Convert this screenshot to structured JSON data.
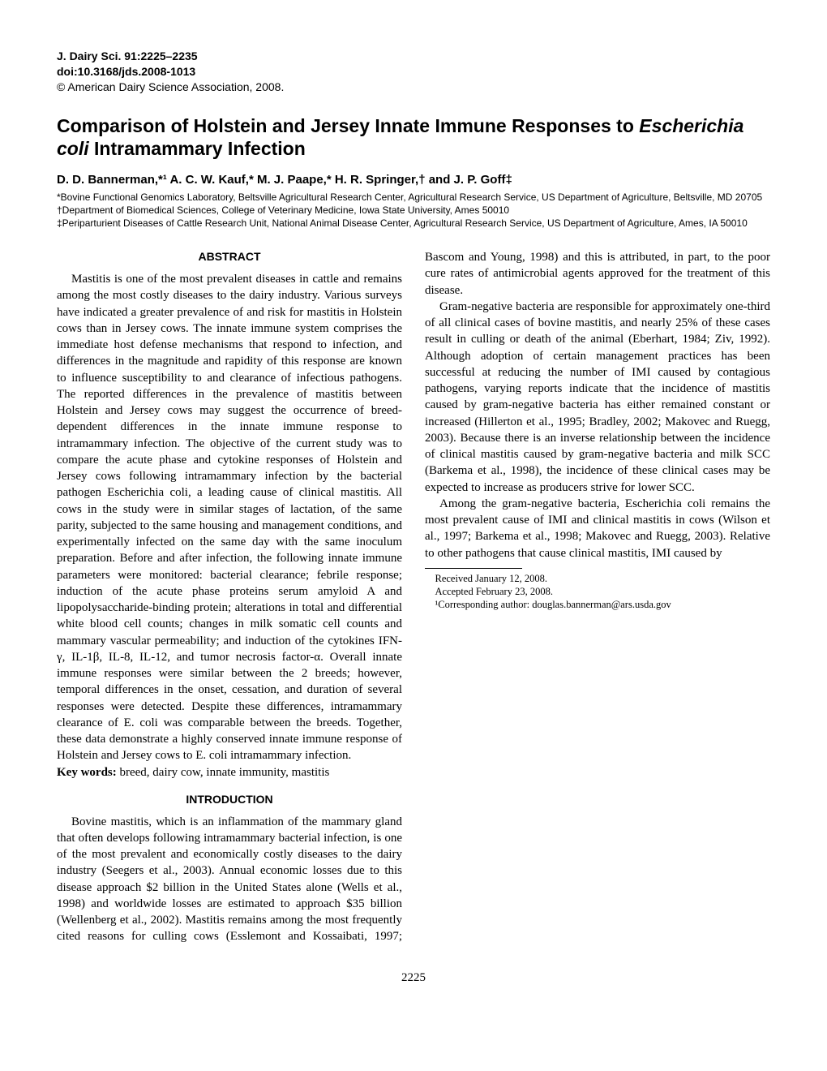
{
  "meta": {
    "journal_line": "J. Dairy Sci. 91:2225–2235",
    "doi_line": "doi:10.3168/jds.2008-1013",
    "copyright_line": "© American Dairy Science Association, 2008."
  },
  "title_pre": "Comparison of Holstein and Jersey Innate Immune Responses to ",
  "title_ital": "Escherichia coli",
  "title_post": " Intramammary Infection",
  "authors": "D. D. Bannerman,*¹ A. C. W. Kauf,* M. J. Paape,* H. R. Springer,† and J. P. Goff‡",
  "affiliations": {
    "a1": "*Bovine Functional Genomics Laboratory, Beltsville Agricultural Research Center, Agricultural Research Service, US Department of Agriculture, Beltsville, MD 20705",
    "a2": "†Department of Biomedical Sciences, College of Veterinary Medicine, Iowa State University, Ames 50010",
    "a3": "‡Periparturient Diseases of Cattle Research Unit, National Animal Disease Center, Agricultural Research Service, US Department of Agriculture, Ames, IA 50010"
  },
  "abstract_head": "ABSTRACT",
  "abstract_body": "Mastitis is one of the most prevalent diseases in cattle and remains among the most costly diseases to the dairy industry. Various surveys have indicated a greater prevalence of and risk for mastitis in Holstein cows than in Jersey cows. The innate immune system comprises the immediate host defense mechanisms that respond to infection, and differences in the magnitude and rapidity of this response are known to influence susceptibility to and clearance of infectious pathogens. The reported differences in the prevalence of mastitis between Holstein and Jersey cows may suggest the occurrence of breed-dependent differences in the innate immune response to intramammary infection. The objective of the current study was to compare the acute phase and cytokine responses of Holstein and Jersey cows following intramammary infection by the bacterial pathogen Escherichia coli, a leading cause of clinical mastitis. All cows in the study were in similar stages of lactation, of the same parity, subjected to the same housing and management conditions, and experimentally infected on the same day with the same inoculum preparation. Before and after infection, the following innate immune parameters were monitored: bacterial clearance; febrile response; induction of the acute phase proteins serum amyloid A and lipopolysaccharide-binding protein; alterations in total and differential white blood cell counts; changes in milk somatic cell counts and mammary vascular permeability; and induction of the cytokines IFN-γ, IL-1β, IL-8, IL-12, and tumor necrosis factor-α. Overall innate immune responses were similar between the 2 breeds; however, temporal differences in the onset, cessation, and duration of several responses were detected. Despite these differences, intramammary clearance of E. coli was comparable between the breeds. Together, these data demonstrate a highly conserved innate immune response of Holstein and Jersey cows to E. coli intramammary infection.",
  "keywords_label": "Key words:",
  "keywords_text": " breed, dairy cow, innate immunity, mastitis",
  "intro_head": "INTRODUCTION",
  "intro_p1": "Bovine mastitis, which is an inflammation of the mammary gland that often develops following intramammary bacterial infection, is one of the most prevalent and economically costly diseases to the dairy industry (Seegers et al., 2003). Annual economic losses due to this disease approach $2 billion in the United States alone (Wells et al., 1998) and worldwide losses are estimated to approach $35 billion (Wellenberg et al., 2002). Mastitis remains among the most frequently cited reasons for culling cows (Esslemont and Kossaibati, 1997; Bascom and Young, 1998) and this is attributed, in part, to the poor cure rates of antimicrobial agents approved for the treatment of this disease.",
  "intro_p2": "Gram-negative bacteria are responsible for approximately one-third of all clinical cases of bovine mastitis, and nearly 25% of these cases result in culling or death of the animal (Eberhart, 1984; Ziv, 1992). Although adoption of certain management practices has been successful at reducing the number of IMI caused by contagious pathogens, varying reports indicate that the incidence of mastitis caused by gram-negative bacteria has either remained constant or increased (Hillerton et al., 1995; Bradley, 2002; Makovec and Ruegg, 2003). Because there is an inverse relationship between the incidence of clinical mastitis caused by gram-negative bacteria and milk SCC (Barkema et al., 1998), the incidence of these clinical cases may be expected to increase as producers strive for lower SCC.",
  "intro_p3": "Among the gram-negative bacteria, Escherichia coli remains the most prevalent cause of IMI and clinical mastitis in cows (Wilson et al., 1997; Barkema et al., 1998; Makovec and Ruegg, 2003). Relative to other pathogens that cause clinical mastitis, IMI caused by",
  "footnotes": {
    "received": "Received January 12, 2008.",
    "accepted": "Accepted February 23, 2008.",
    "corresponding": "¹Corresponding author: douglas.bannerman@ars.usda.gov"
  },
  "page_number": "2225"
}
